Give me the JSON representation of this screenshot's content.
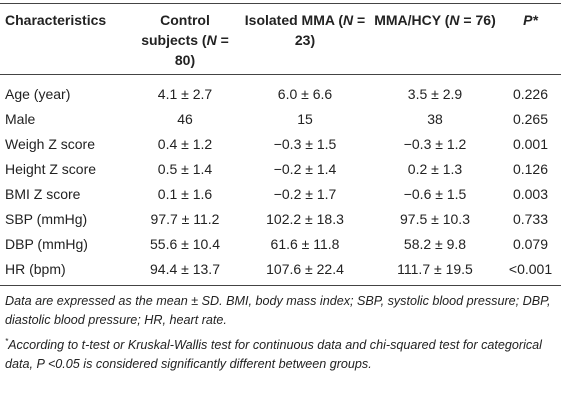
{
  "table": {
    "header": [
      [
        "Characteristics"
      ],
      [
        "Control subjects (",
        "N",
        " = 80)"
      ],
      [
        "Isolated MMA (",
        "N",
        " = 23)"
      ],
      [
        "MMA/HCY (",
        "N",
        " = 76)"
      ],
      [
        "",
        "P*"
      ]
    ],
    "rows": [
      [
        "Age (year)",
        "4.1 ± 2.7",
        "6.0 ± 6.6",
        "3.5 ± 2.9",
        "0.226"
      ],
      [
        "Male",
        "46",
        "15",
        "38",
        "0.265"
      ],
      [
        "Weigh Z score",
        "0.4 ± 1.2",
        "−0.3 ± 1.5",
        "−0.3 ± 1.2",
        "0.001"
      ],
      [
        "Height Z score",
        "0.5 ± 1.4",
        "−0.2 ± 1.4",
        "0.2 ± 1.3",
        "0.126"
      ],
      [
        "BMI Z score",
        "0.1 ± 1.6",
        "−0.2 ± 1.7",
        "−0.6 ± 1.5",
        "0.003"
      ],
      [
        "SBP (mmHg)",
        "97.7 ± 11.2",
        "102.2 ± 18.3",
        "97.5 ± 10.3",
        "0.733"
      ],
      [
        "DBP (mmHg)",
        "55.6 ± 10.4",
        "61.6 ± 11.8",
        "58.2 ± 9.8",
        "0.079"
      ],
      [
        "HR (bpm)",
        "94.4 ± 13.7",
        "107.6 ± 22.4",
        "111.7 ± 19.5",
        "<0.001"
      ]
    ]
  },
  "footnotes": [
    [
      "Data are expressed as the mean ± SD. BMI, body mass index; SBP, systolic blood pressure; DBP, diastolic blood pressure; HR, heart rate."
    ],
    [
      "*",
      "According to t-test or Kruskal-Wallis test for continuous data and chi-squared test for categorical data, P <0.05 is considered significantly different between groups."
    ]
  ]
}
